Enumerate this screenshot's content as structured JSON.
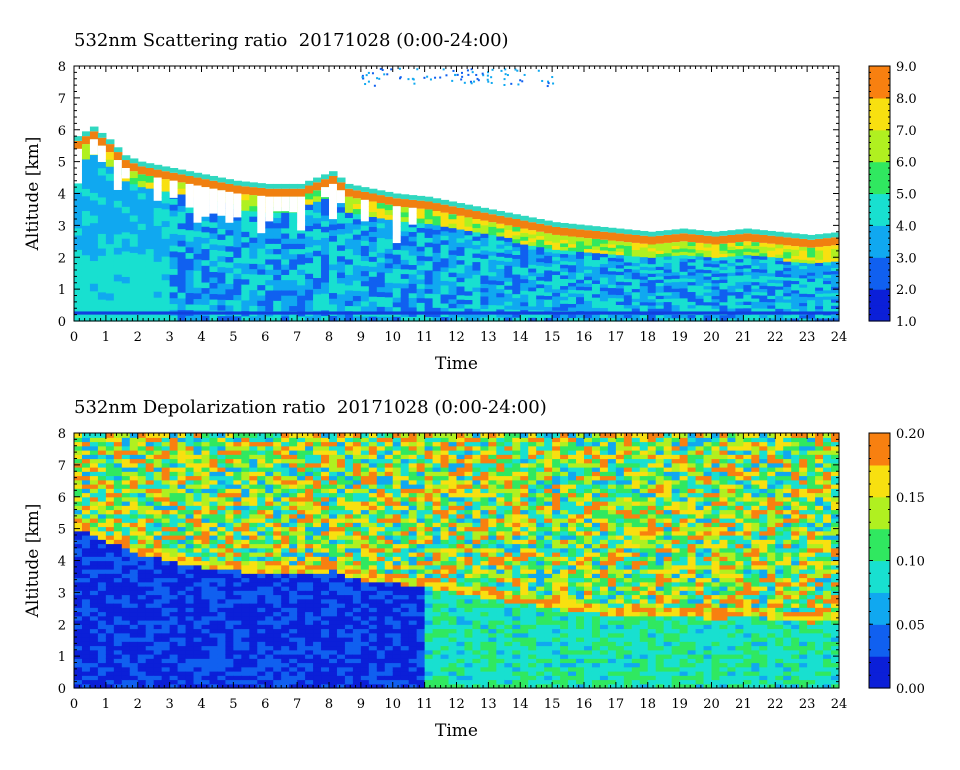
{
  "chart_data": [
    {
      "type": "heatmap",
      "title": "532nm Scattering ratio  20171028 (0:00-24:00)",
      "xlabel": "Time",
      "ylabel": "Altitude [km]",
      "xlim": [
        0,
        24
      ],
      "ylim": [
        0,
        8
      ],
      "x_ticks": [
        0,
        1,
        2,
        3,
        4,
        5,
        6,
        7,
        8,
        9,
        10,
        11,
        12,
        13,
        14,
        15,
        16,
        17,
        18,
        19,
        20,
        21,
        22,
        23,
        24
      ],
      "y_ticks": [
        0,
        1,
        2,
        3,
        4,
        5,
        6,
        7,
        8
      ],
      "colorbar": {
        "range": [
          1.0,
          9.0
        ],
        "ticks": [
          "1.0",
          "2.0",
          "3.0",
          "4.0",
          "5.0",
          "6.0",
          "7.0",
          "8.0",
          "9.0"
        ]
      },
      "cloud_base_km": [
        [
          0,
          5.4
        ],
        [
          0.5,
          5.7
        ],
        [
          1,
          5.3
        ],
        [
          1.5,
          4.8
        ],
        [
          2,
          4.6
        ],
        [
          2.5,
          4.5
        ],
        [
          3,
          4.4
        ],
        [
          3.5,
          4.3
        ],
        [
          4,
          4.2
        ],
        [
          5,
          4.0
        ],
        [
          6,
          3.9
        ],
        [
          7,
          3.9
        ],
        [
          7.5,
          4.1
        ],
        [
          8,
          4.3
        ],
        [
          8.5,
          3.9
        ],
        [
          9,
          3.8
        ],
        [
          10,
          3.6
        ],
        [
          11,
          3.5
        ],
        [
          12,
          3.3
        ],
        [
          13,
          3.1
        ],
        [
          14,
          2.9
        ],
        [
          15,
          2.7
        ],
        [
          16,
          2.6
        ],
        [
          17,
          2.5
        ],
        [
          18,
          2.4
        ],
        [
          19,
          2.5
        ],
        [
          20,
          2.4
        ],
        [
          21,
          2.5
        ],
        [
          22,
          2.4
        ],
        [
          23,
          2.3
        ],
        [
          24,
          2.4
        ]
      ]
    },
    {
      "type": "heatmap",
      "title": "532nm Depolarization ratio  20171028 (0:00-24:00)",
      "xlabel": "Time",
      "ylabel": "Altitude [km]",
      "xlim": [
        0,
        24
      ],
      "ylim": [
        0,
        8
      ],
      "x_ticks": [
        0,
        1,
        2,
        3,
        4,
        5,
        6,
        7,
        8,
        9,
        10,
        11,
        12,
        13,
        14,
        15,
        16,
        17,
        18,
        19,
        20,
        21,
        22,
        23,
        24
      ],
      "y_ticks": [
        0,
        1,
        2,
        3,
        4,
        5,
        6,
        7,
        8
      ],
      "colorbar": {
        "range": [
          0.0,
          0.2
        ],
        "ticks": [
          "0.00",
          "0.05",
          "0.10",
          "0.15",
          "0.20"
        ]
      },
      "low_layer_top_km": [
        [
          0,
          5.2
        ],
        [
          1,
          4.8
        ],
        [
          2,
          4.4
        ],
        [
          3,
          4.2
        ],
        [
          4,
          4.0
        ],
        [
          5,
          3.9
        ],
        [
          6,
          3.8
        ],
        [
          7,
          3.8
        ],
        [
          8,
          3.9
        ],
        [
          9,
          3.6
        ],
        [
          10,
          3.5
        ],
        [
          11,
          3.4
        ],
        [
          12,
          3.2
        ],
        [
          13,
          3.0
        ],
        [
          14,
          2.9
        ],
        [
          15,
          2.7
        ],
        [
          16,
          2.6
        ],
        [
          17,
          2.5
        ],
        [
          18,
          2.5
        ],
        [
          19,
          2.5
        ],
        [
          20,
          2.4
        ],
        [
          21,
          2.5
        ],
        [
          22,
          2.4
        ],
        [
          23,
          2.3
        ],
        [
          24,
          2.4
        ]
      ]
    }
  ]
}
